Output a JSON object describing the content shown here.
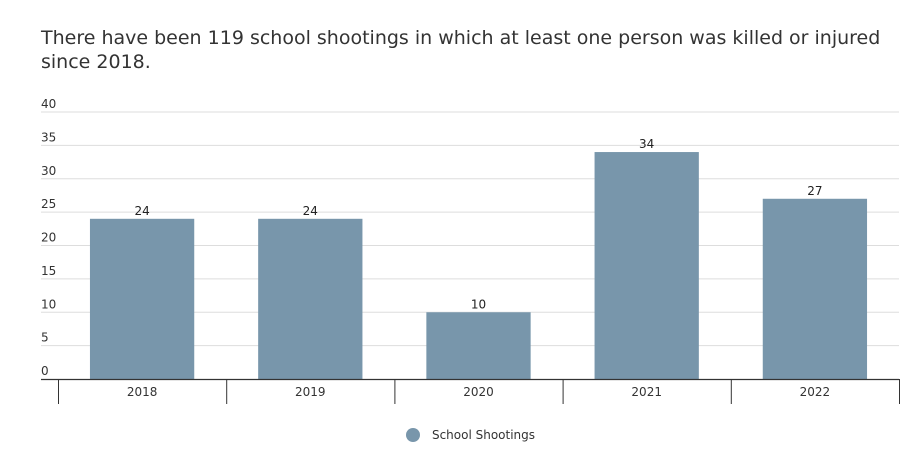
{
  "colors": {
    "bar": "#7896ab",
    "grid": "#dddddd",
    "axis": "#333333"
  },
  "chart_data": {
    "type": "bar",
    "title": "There have been 119 school shootings in which at least one person was killed or injured since 2018.",
    "categories": [
      "2018",
      "2019",
      "2020",
      "2021",
      "2022"
    ],
    "series": [
      {
        "name": "School Shootings",
        "values": [
          24,
          24,
          10,
          34,
          27
        ]
      }
    ],
    "ylim": [
      0,
      40
    ],
    "yticks": [
      0,
      5,
      10,
      15,
      20,
      25,
      30,
      35,
      40
    ],
    "xlabel": "",
    "ylabel": "",
    "grid": true,
    "data_labels": true,
    "legend": "bottom-center"
  }
}
